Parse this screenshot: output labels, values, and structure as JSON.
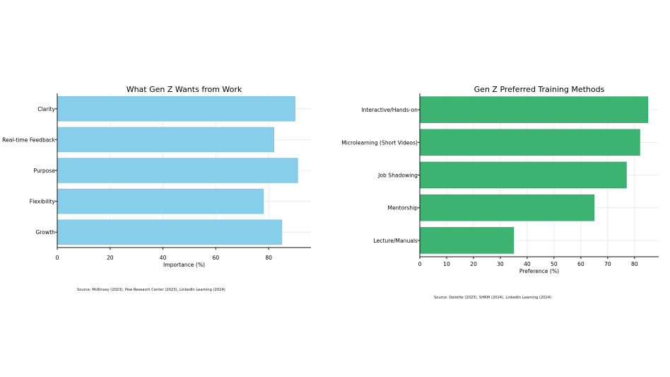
{
  "chart_data": [
    {
      "type": "bar",
      "orientation": "horizontal",
      "title": "What Gen Z Wants from Work",
      "xlabel": "Importance (%)",
      "ylabel": "",
      "categories": [
        "Clarity",
        "Real-time Feedback",
        "Purpose",
        "Flexibility",
        "Growth"
      ],
      "values": [
        90,
        82,
        91,
        78,
        85
      ],
      "xlim": [
        0,
        96
      ],
      "xticks": [
        0,
        20,
        40,
        60,
        80
      ],
      "grid": true,
      "color": "#87ceeb",
      "source": "Source: McKinsey (2023), Pew Research Center (2023), LinkedIn Learning (2024)"
    },
    {
      "type": "bar",
      "orientation": "horizontal",
      "title": "Gen Z Preferred Training Methods",
      "xlabel": "Preference (%)",
      "ylabel": "",
      "categories": [
        "Interactive/Hands-on",
        "Microlearning (Short Videos)",
        "Job Shadowing",
        "Mentorship",
        "Lecture/Manuals"
      ],
      "values": [
        85,
        82,
        77,
        65,
        35
      ],
      "xlim": [
        0,
        89
      ],
      "xticks": [
        0,
        10,
        20,
        30,
        40,
        50,
        60,
        70,
        80
      ],
      "grid": true,
      "color": "#3cb371",
      "source": "Source: Deloitte (2023), SHRM (2024), LinkedIn Learning (2024)"
    }
  ]
}
